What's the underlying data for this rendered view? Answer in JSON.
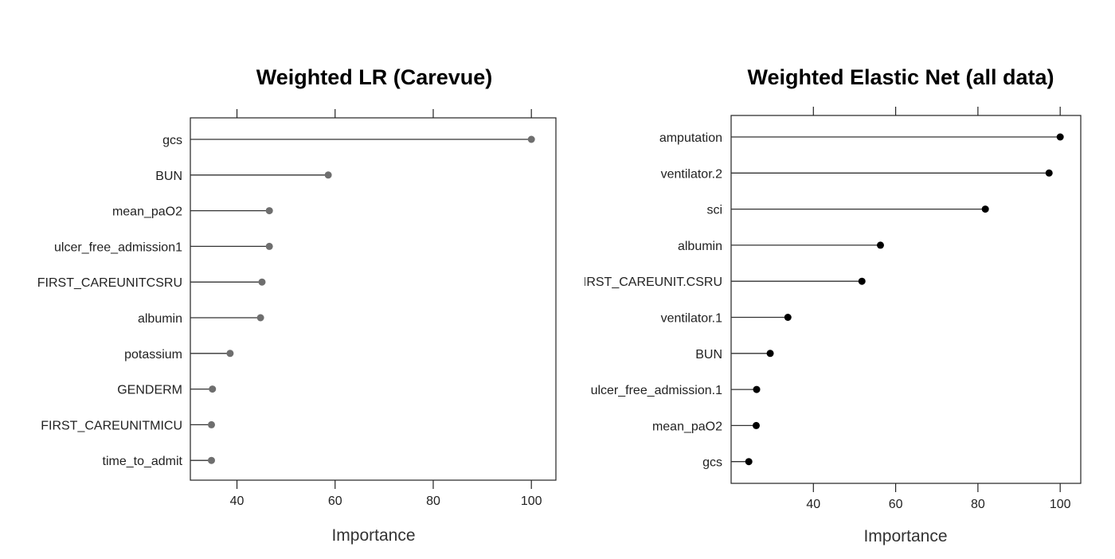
{
  "chart_data": [
    {
      "type": "lollipop",
      "title": "Weighted LR (Carevue)",
      "xlabel": "Importance",
      "xlim": [
        30.5,
        105
      ],
      "xticks": [
        40,
        60,
        80,
        100
      ],
      "tick_labels": [
        "40",
        "60",
        "80",
        "100"
      ],
      "point_color": "#6e6e6e",
      "line_color": "#333333",
      "categories": [
        "gcs",
        "BUN",
        "mean_paO2",
        "ulcer_free_admission1",
        "FIRST_CAREUNITCSRU",
        "albumin",
        "potassium",
        "GENDERM",
        "FIRST_CAREUNITMICU",
        "time_to_admit"
      ],
      "values": [
        100,
        58.6,
        46.6,
        46.6,
        45.1,
        44.8,
        38.6,
        35,
        34.8,
        34.8
      ]
    },
    {
      "type": "lollipop",
      "title": "Weighted Elastic Net (all data)",
      "xlabel": "Importance",
      "xlim": [
        20,
        105
      ],
      "xticks": [
        40,
        60,
        80,
        100
      ],
      "tick_labels": [
        "40",
        "60",
        "80",
        "100"
      ],
      "point_color": "#000000",
      "line_color": "#333333",
      "categories": [
        "amputation",
        "ventilator.2",
        "sci",
        "albumin",
        "FIRST_CAREUNIT.CSRU",
        "ventilator.1",
        "BUN",
        "ulcer_free_admission.1",
        "mean_paO2",
        "gcs"
      ],
      "values": [
        100,
        97.3,
        81.8,
        56.3,
        51.8,
        33.8,
        29.5,
        26.2,
        26.1,
        24.3
      ]
    }
  ]
}
